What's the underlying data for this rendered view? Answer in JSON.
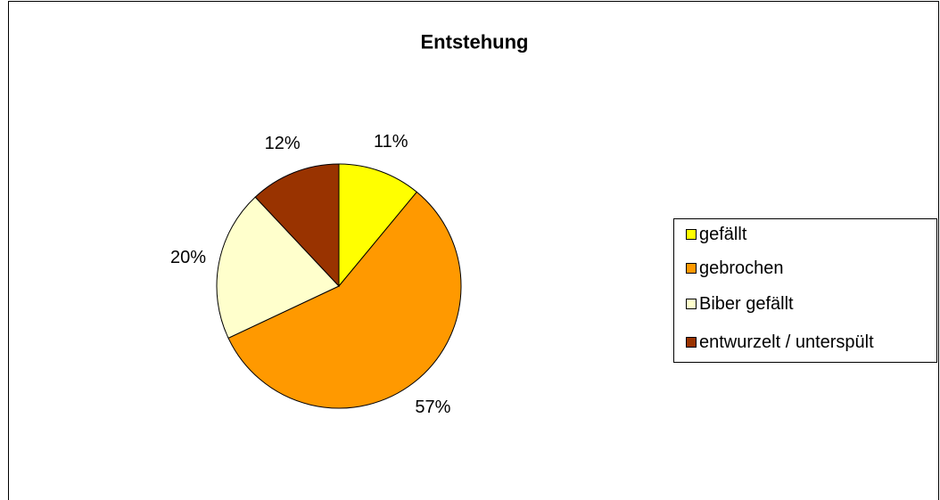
{
  "chart_data": {
    "type": "pie",
    "title": "Entstehung",
    "categories": [
      "gefällt",
      "gebrochen",
      "Biber gefällt",
      "entwurzelt / unterspült"
    ],
    "values": [
      11,
      57,
      20,
      12
    ],
    "value_labels": [
      "11%",
      "57%",
      "20%",
      "12%"
    ],
    "colors": [
      "#ffff00",
      "#ff9900",
      "#ffffcc",
      "#993300"
    ],
    "legend": "right"
  }
}
